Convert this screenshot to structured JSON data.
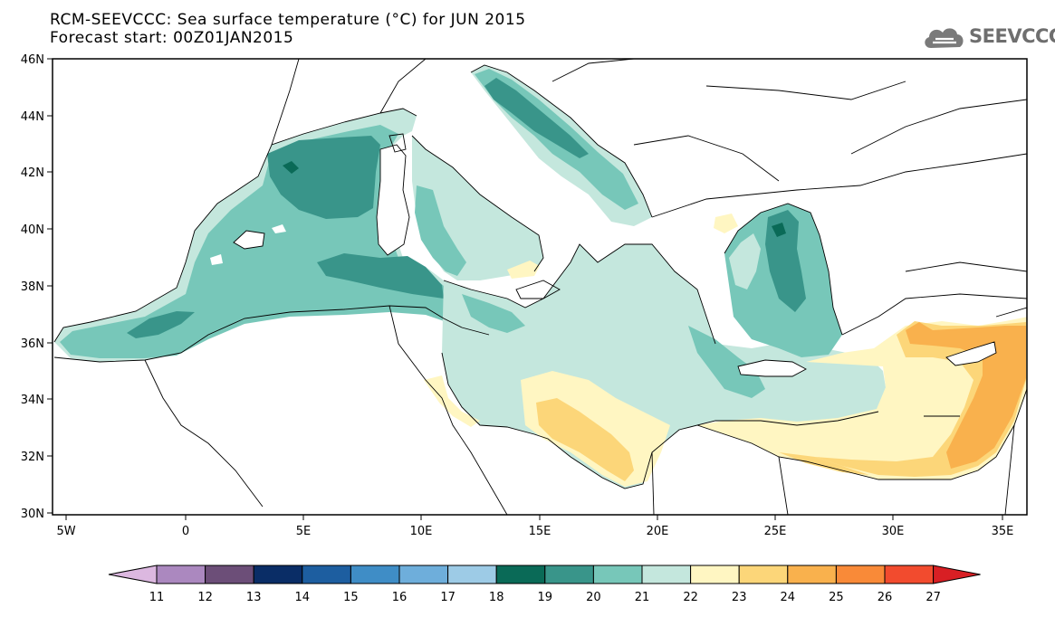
{
  "title": {
    "line1": "RCM-SEEVCCC: Sea surface temperature (°C) for JUN 2015",
    "line2": "Forecast start: 00Z01JAN2015"
  },
  "logo": {
    "text": "SEEVCCC"
  },
  "map": {
    "lat_labels": [
      "46N",
      "44N",
      "42N",
      "40N",
      "38N",
      "36N",
      "34N",
      "32N",
      "30N"
    ],
    "lon_labels": [
      "5W",
      "0",
      "5E",
      "10E",
      "15E",
      "20E",
      "25E",
      "30E",
      "35E"
    ],
    "lat_range": [
      30,
      46
    ],
    "lon_range": [
      -5.5,
      36.5
    ]
  },
  "colorbar": {
    "labels": [
      "11",
      "12",
      "13",
      "14",
      "15",
      "16",
      "17",
      "18",
      "19",
      "20",
      "21",
      "22",
      "23",
      "24",
      "25",
      "26",
      "27"
    ],
    "colors": [
      "#dcb8e0",
      "#ab88bf",
      "#6c4e78",
      "#0a2d66",
      "#1d5ea0",
      "#3f8dc6",
      "#6eaedb",
      "#9dcbe6",
      "#0a6a57",
      "#39958a",
      "#77c7b9",
      "#c4e7dd",
      "#fff6c2",
      "#fcd679",
      "#f9b14d",
      "#f98a38",
      "#f24b2e",
      "#d81f24"
    ]
  },
  "field_colors": {
    "land": "#ffffff",
    "c19": "#39958a",
    "c18": "#0a6a57",
    "c20": "#77c7b9",
    "c21": "#c4e7dd",
    "c22": "#fff6c2",
    "c23": "#fcd679",
    "c24": "#f9b14d"
  }
}
